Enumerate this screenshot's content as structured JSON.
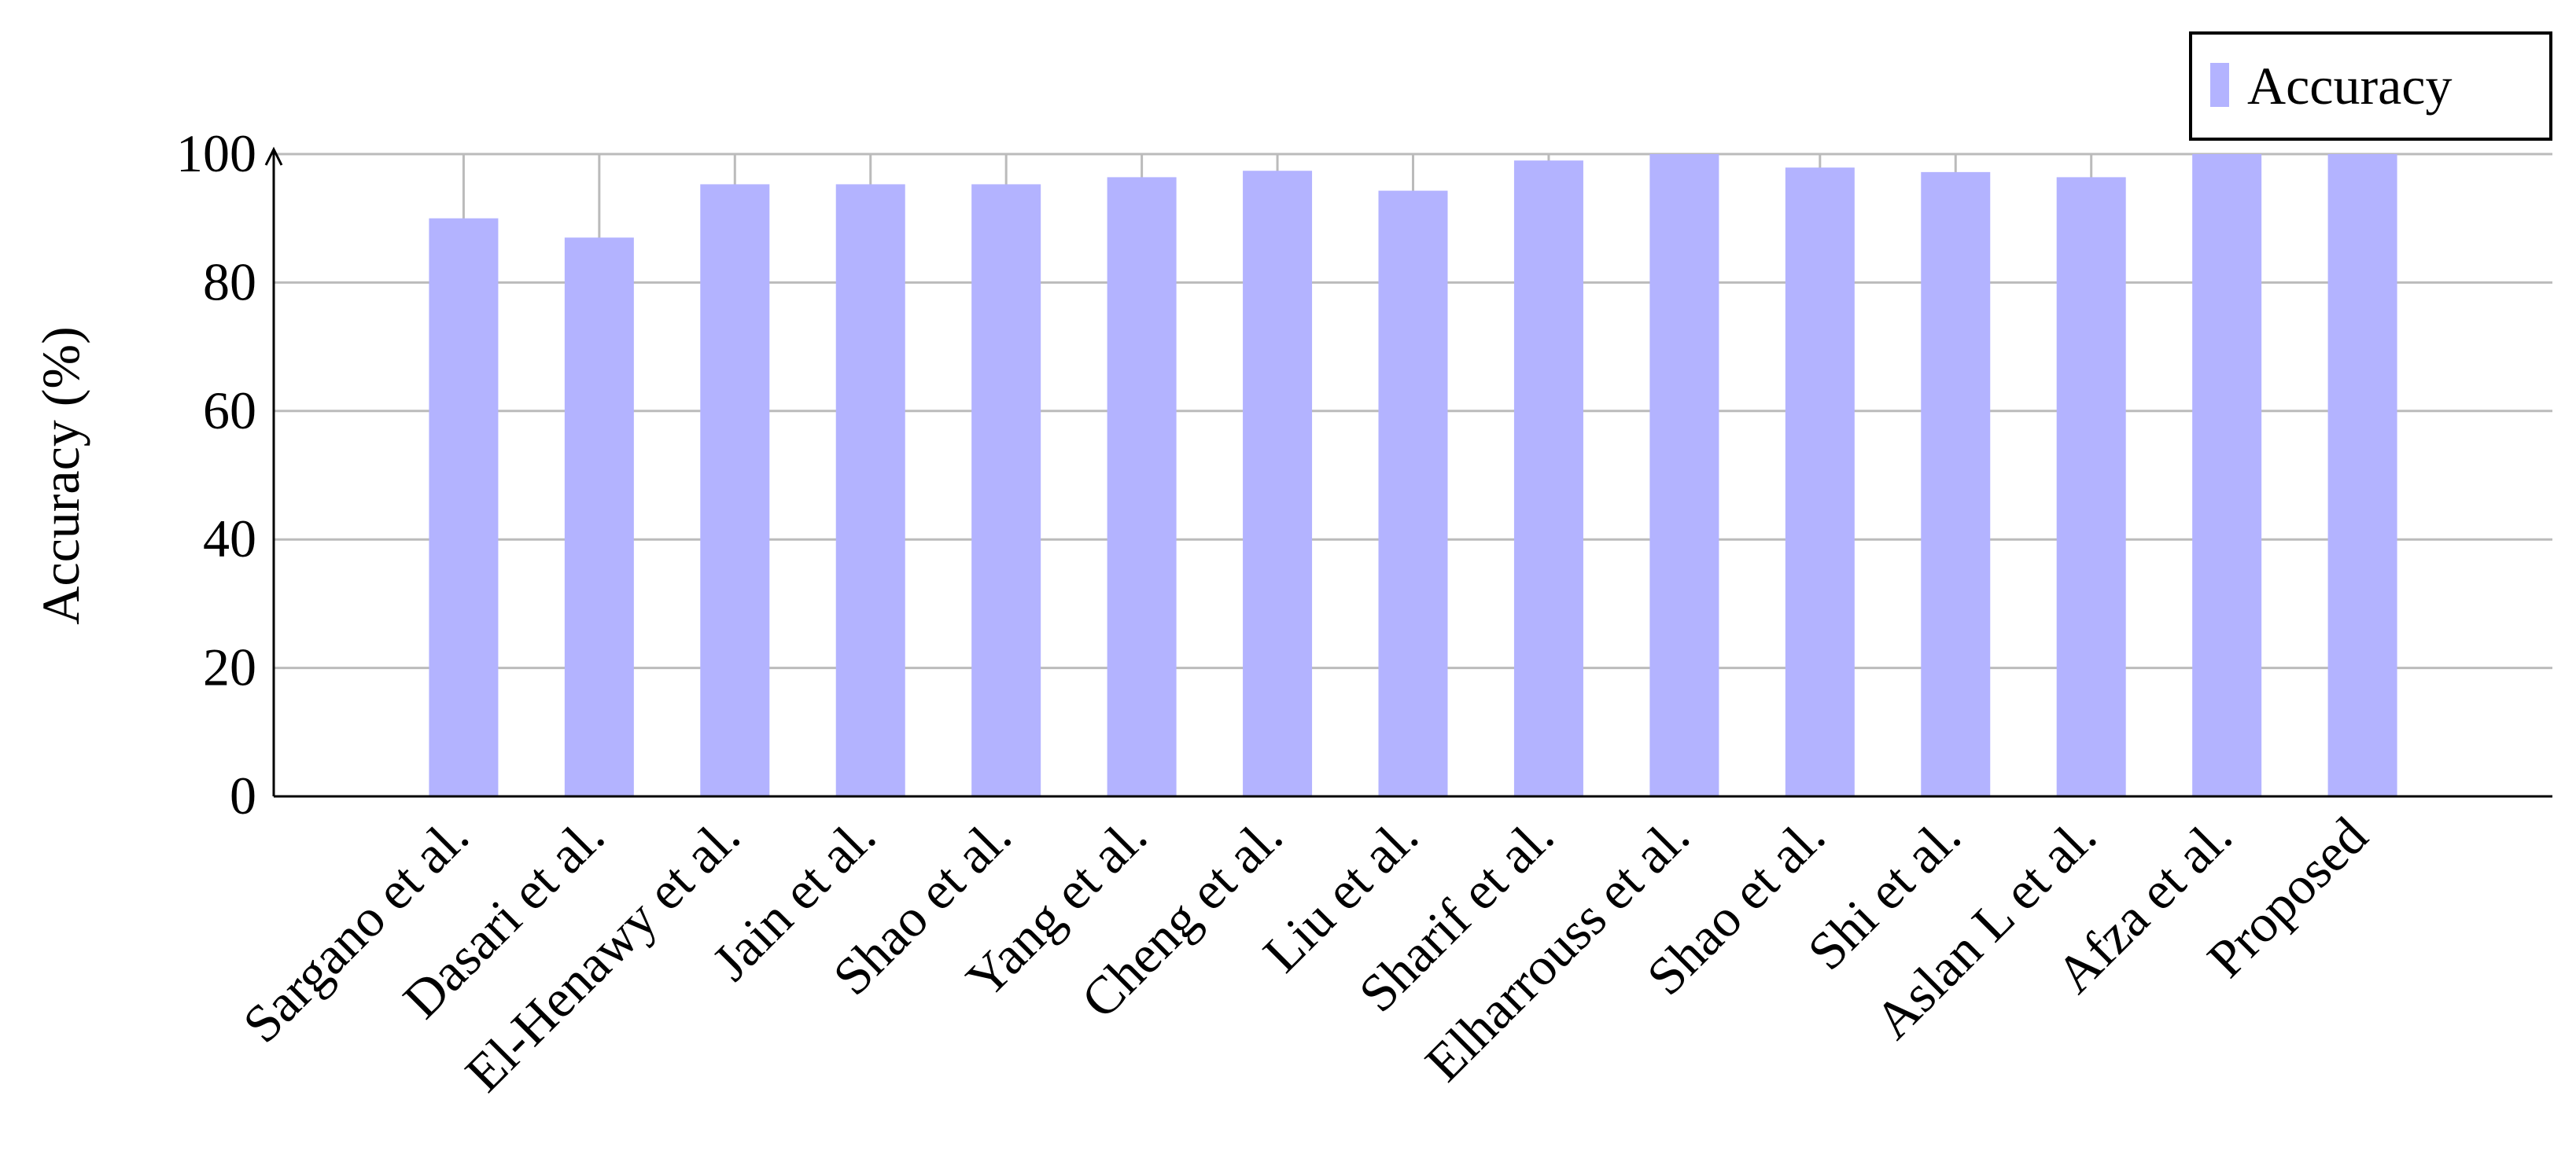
{
  "chart_data": {
    "type": "bar",
    "y_label": "Accuracy (%)",
    "categories": [
      "Sargano et al.",
      "Dasari et al.",
      "El-Henawy et al.",
      "Jain et al.",
      "Shao et al.",
      "Yang et al.",
      "Cheng et al.",
      "Liu et al.",
      "Sharif et al.",
      "Elharrouss et al.",
      "Shao et al.",
      "Shi et al.",
      "Aslan L et al.",
      "Afza et al.",
      "Proposed"
    ],
    "series": [
      {
        "name": "Accuracy",
        "color": "#b3b3ff",
        "values": [
          90,
          87,
          95.3,
          95.3,
          95.3,
          96.4,
          97.4,
          94.3,
          99,
          100,
          97.9,
          97.2,
          96.4,
          100,
          100
        ]
      }
    ],
    "ylim": [
      0,
      100
    ],
    "yticks": [
      0,
      20,
      40,
      60,
      80,
      100
    ],
    "grid": true,
    "legend": "top-right"
  }
}
